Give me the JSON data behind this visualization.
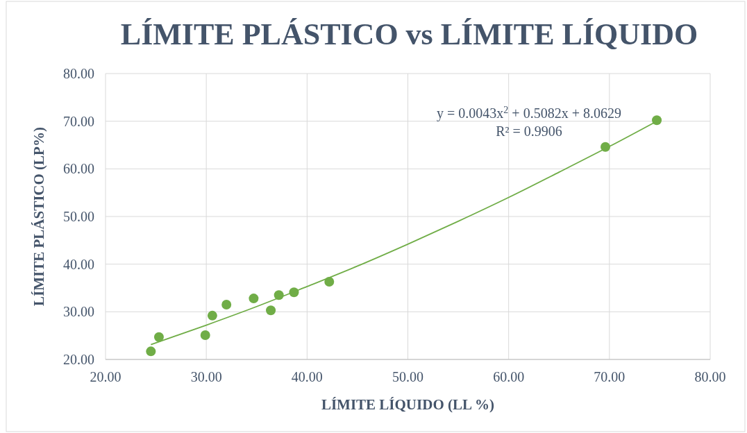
{
  "chart_data": {
    "type": "scatter",
    "title": "LÍMITE PLÁSTICO vs LÍMITE LÍQUIDO",
    "xlabel": "LÍMITE LÍQUIDO (LL %)",
    "ylabel": "LÍMITE PLÁSTICO (LP%)",
    "xlim": [
      20,
      80
    ],
    "ylim": [
      20,
      80
    ],
    "xticks": [
      {
        "value": 20,
        "label": "20.00"
      },
      {
        "value": 30,
        "label": "30.00"
      },
      {
        "value": 40,
        "label": "40.00"
      },
      {
        "value": 50,
        "label": "50.00"
      },
      {
        "value": 60,
        "label": "60.00"
      },
      {
        "value": 70,
        "label": "70.00"
      },
      {
        "value": 80,
        "label": "80.00"
      }
    ],
    "yticks": [
      {
        "value": 20,
        "label": "20.00"
      },
      {
        "value": 30,
        "label": "30.00"
      },
      {
        "value": 40,
        "label": "40.00"
      },
      {
        "value": 50,
        "label": "50.00"
      },
      {
        "value": 60,
        "label": "60.00"
      },
      {
        "value": 70,
        "label": "70.00"
      },
      {
        "value": 80,
        "label": "80.00"
      }
    ],
    "grid": true,
    "marker": "circle",
    "series": [
      {
        "color": "#70ad47",
        "x": [
          24.5,
          25.3,
          29.9,
          30.6,
          32.0,
          34.7,
          36.4,
          37.2,
          38.7,
          42.2,
          69.6,
          74.7
        ],
        "values": [
          21.7,
          24.7,
          25.1,
          29.2,
          31.5,
          32.8,
          30.3,
          33.5,
          34.1,
          36.3,
          64.6,
          70.2
        ]
      },
      {
        "type": "line",
        "color": "#70ad47",
        "marker": "none",
        "x": [
          24.5,
          30,
          35,
          40,
          45,
          50,
          55,
          60,
          65,
          70,
          74.7
        ],
        "values": [
          23.1,
          27.2,
          31.1,
          35.3,
          39.6,
          44.2,
          49.0,
          54.0,
          59.3,
          64.7,
          70.0
        ]
      }
    ],
    "annotations": [
      "y = 0.0043x$^{2}$ + 0.5082x + 8.0629",
      "R² = 0.9906"
    ]
  }
}
